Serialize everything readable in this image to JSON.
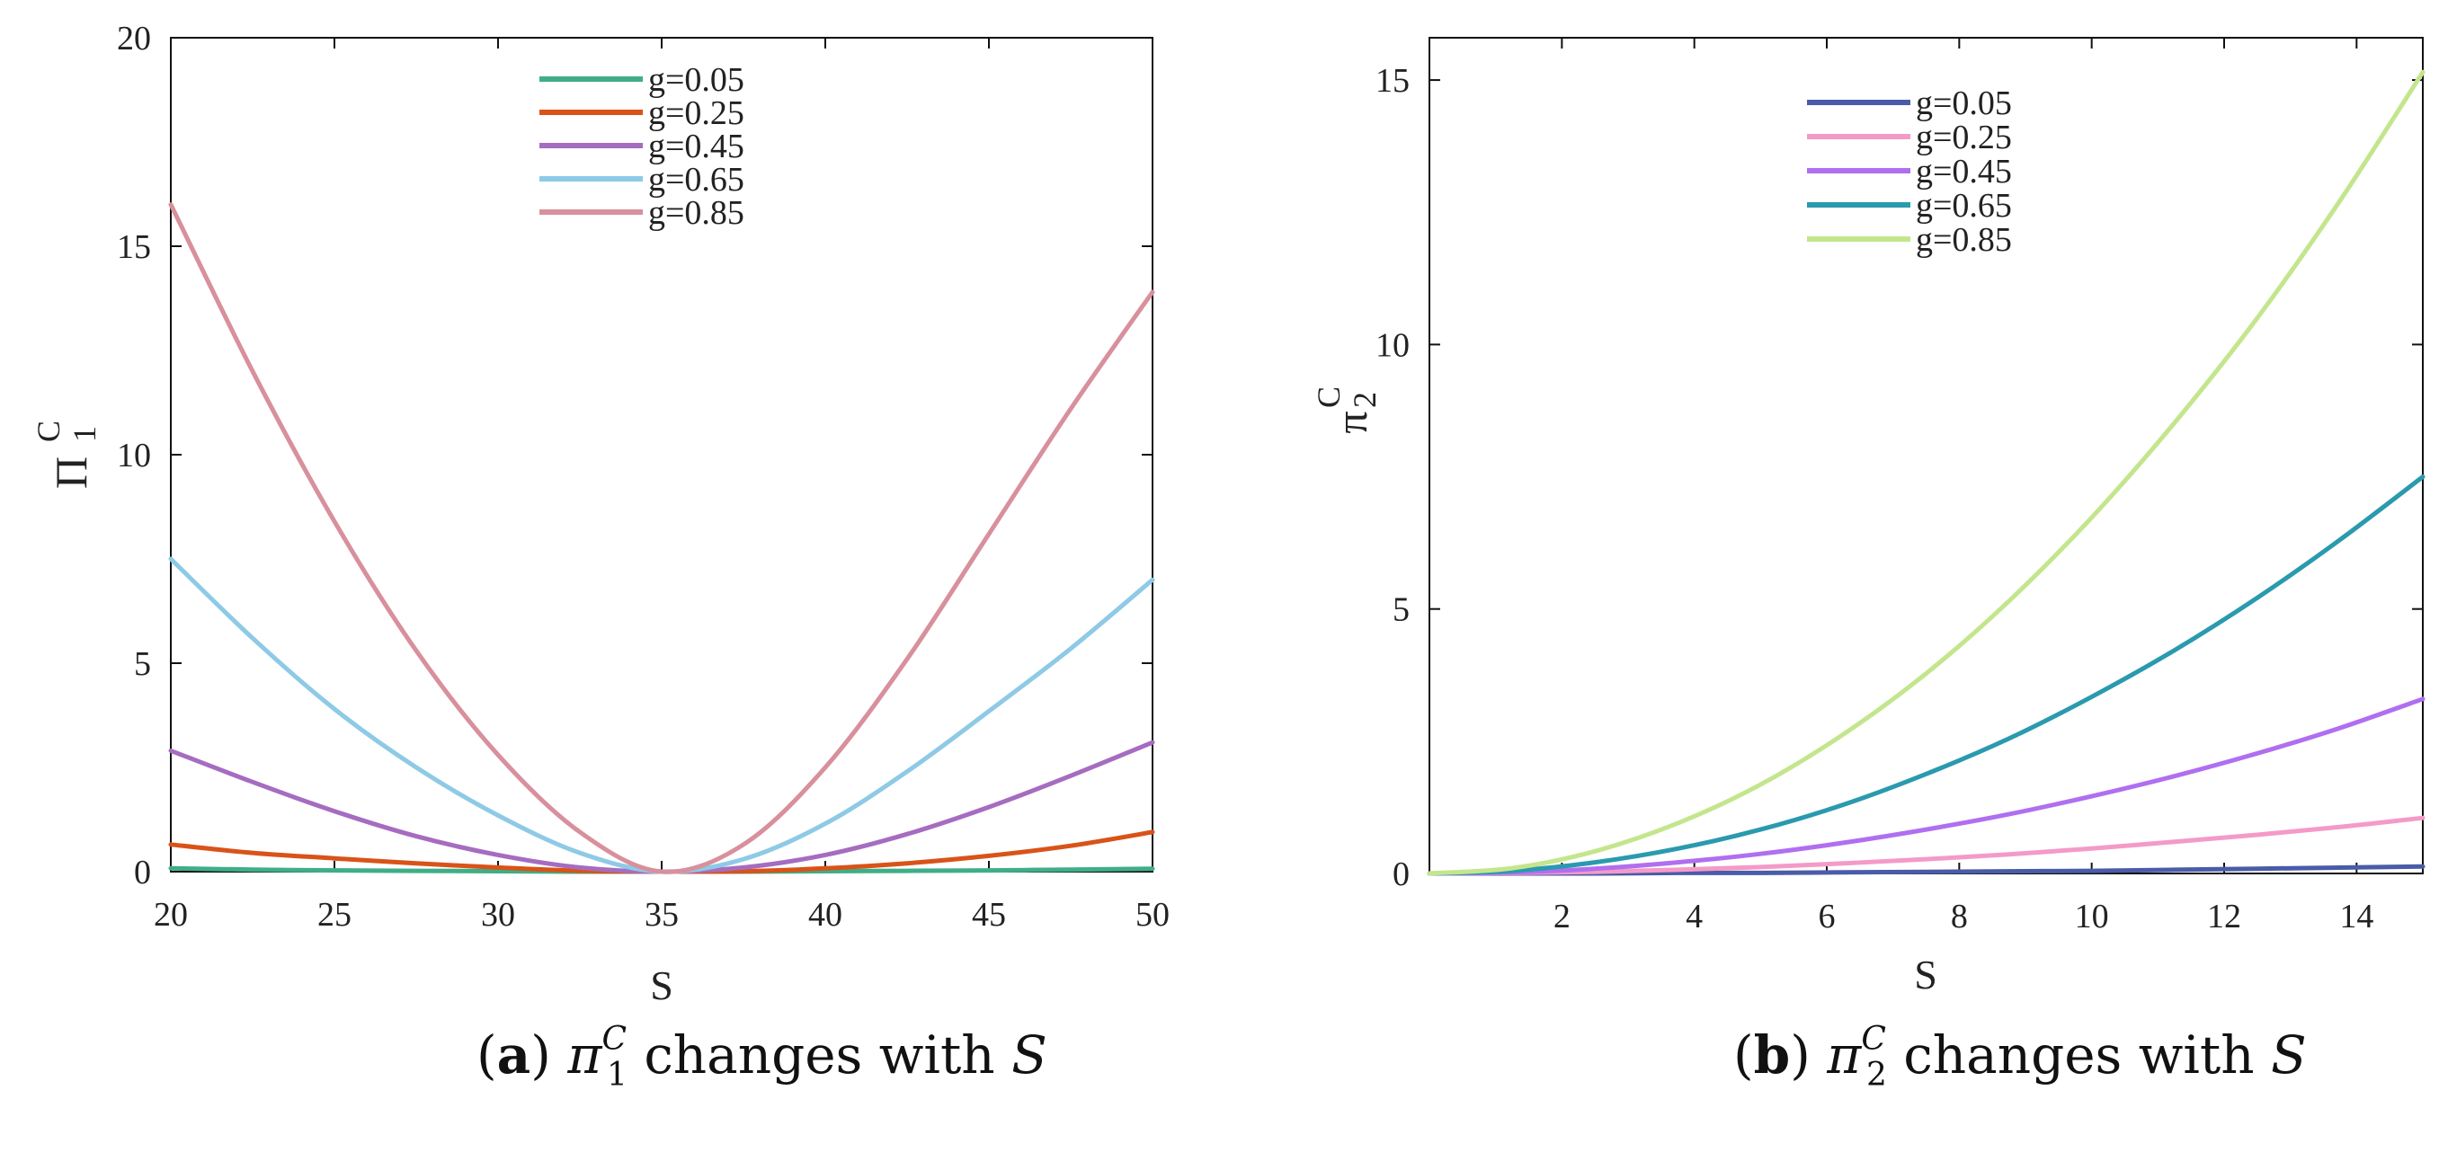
{
  "chart_data": [
    {
      "type": "line",
      "title": "",
      "xlabel": "S",
      "ylabel_main": "Π",
      "ylabel_sup": "C",
      "ylabel_sub": "1",
      "xlim": [
        20,
        50
      ],
      "ylim": [
        0,
        20
      ],
      "xticks": [
        20,
        25,
        30,
        35,
        40,
        45,
        50
      ],
      "yticks": [
        0,
        5,
        10,
        15,
        20
      ],
      "legend_position": "top-center",
      "x": [
        20,
        22.5,
        25,
        27.5,
        30,
        32.5,
        35,
        37.5,
        40,
        42.5,
        45,
        47.5,
        50
      ],
      "series": [
        {
          "name": "g=0.05",
          "color": "#3fae86",
          "values": [
            0.08,
            0.05,
            0.03,
            0.02,
            0.01,
            0.0,
            0.0,
            0.0,
            0.01,
            0.02,
            0.03,
            0.05,
            0.07
          ]
        },
        {
          "name": "g=0.25",
          "color": "#d95319",
          "values": [
            0.65,
            0.45,
            0.32,
            0.2,
            0.1,
            0.02,
            0.0,
            0.01,
            0.08,
            0.2,
            0.38,
            0.62,
            0.95
          ]
        },
        {
          "name": "g=0.45",
          "color": "#a66cc0",
          "values": [
            2.9,
            2.15,
            1.45,
            0.85,
            0.4,
            0.1,
            0.0,
            0.1,
            0.4,
            0.9,
            1.55,
            2.3,
            3.1
          ]
        },
        {
          "name": "g=0.65",
          "color": "#8ecae6",
          "values": [
            7.5,
            5.6,
            3.9,
            2.5,
            1.35,
            0.45,
            0.0,
            0.3,
            1.15,
            2.4,
            3.85,
            5.35,
            7.0
          ]
        },
        {
          "name": "g=0.85",
          "color": "#d8909c",
          "values": [
            16.0,
            12.0,
            8.4,
            5.3,
            2.8,
            0.95,
            0.0,
            0.65,
            2.5,
            5.1,
            8.1,
            11.1,
            13.9
          ]
        }
      ]
    },
    {
      "type": "line",
      "title": "",
      "xlabel": "S",
      "ylabel_main": "π",
      "ylabel_sup": "C",
      "ylabel_sub": "2",
      "xlim": [
        0,
        15
      ],
      "ylim": [
        0,
        15.8
      ],
      "xticks": [
        2,
        4,
        6,
        8,
        10,
        12,
        14
      ],
      "yticks": [
        0,
        5,
        10,
        15
      ],
      "legend_position": "top-center",
      "x": [
        0,
        1.25,
        2.5,
        3.75,
        5,
        6.25,
        7.5,
        8.75,
        10,
        11.25,
        12.5,
        13.75,
        15
      ],
      "series": [
        {
          "name": "g=0.05",
          "color": "#4a5ba8",
          "values": [
            0.0,
            0.0,
            0.0,
            0.01,
            0.01,
            0.02,
            0.03,
            0.04,
            0.05,
            0.07,
            0.09,
            0.11,
            0.13
          ]
        },
        {
          "name": "g=0.25",
          "color": "#f49ac8",
          "values": [
            0.0,
            0.01,
            0.03,
            0.07,
            0.12,
            0.19,
            0.27,
            0.36,
            0.47,
            0.6,
            0.73,
            0.88,
            1.05
          ]
        },
        {
          "name": "g=0.45",
          "color": "#b06ff0",
          "values": [
            0.0,
            0.02,
            0.09,
            0.21,
            0.37,
            0.58,
            0.83,
            1.12,
            1.46,
            1.84,
            2.27,
            2.75,
            3.3
          ]
        },
        {
          "name": "g=0.65",
          "color": "#2a9aae",
          "values": [
            0.0,
            0.05,
            0.21,
            0.47,
            0.83,
            1.3,
            1.88,
            2.55,
            3.34,
            4.22,
            5.21,
            6.31,
            7.5
          ]
        },
        {
          "name": "g=0.85",
          "color": "#c3e68d",
          "values": [
            0.0,
            0.1,
            0.42,
            0.95,
            1.68,
            2.63,
            3.78,
            5.15,
            6.73,
            8.52,
            10.5,
            12.72,
            15.15
          ]
        }
      ]
    }
  ],
  "captions": [
    {
      "label": "a",
      "sym": "π",
      "sup": "C",
      "sub": "1",
      "text": "changes with",
      "var": "S"
    },
    {
      "label": "b",
      "sym": "π",
      "sup": "C",
      "sub": "2",
      "text": "changes with",
      "var": "S"
    }
  ]
}
